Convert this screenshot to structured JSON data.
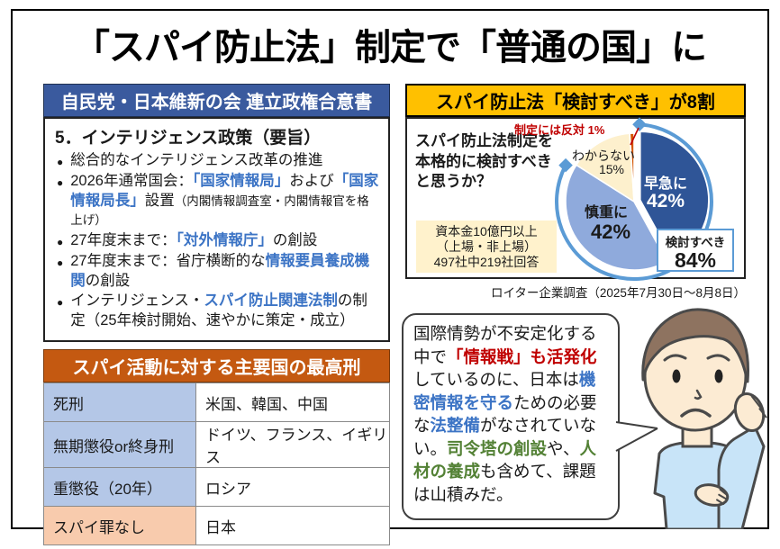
{
  "title": "「スパイ防止法」制定で「普通の国」に",
  "agreement": {
    "header": "自民党・日本維新の会 連立政権合意書",
    "heading": "5．インテリジェンス政策（要旨）",
    "bullets": [
      [
        {
          "t": "総合的なインテリジェンス改革の推進"
        }
      ],
      [
        {
          "t": "2026年通常国会："
        },
        {
          "t": "「国家情報局」",
          "c": "blue"
        },
        {
          "t": "および"
        },
        {
          "t": "「国家情報局長」",
          "c": "blue"
        },
        {
          "t": "設置"
        },
        {
          "t": "（内閣情報調査室・内閣情報官を格上げ）",
          "c": "small"
        }
      ],
      [
        {
          "t": "27年度末まで："
        },
        {
          "t": "「対外情報庁」",
          "c": "blue"
        },
        {
          "t": "の創設"
        }
      ],
      [
        {
          "t": "27年度末まで：省庁横断的な"
        },
        {
          "t": "情報要員養成機関",
          "c": "blue"
        },
        {
          "t": "の創設"
        }
      ],
      [
        {
          "t": "インテリジェンス・"
        },
        {
          "t": "スパイ防止関連法制",
          "c": "blue"
        },
        {
          "t": "の制定（25年検討開始、速やかに策定・成立）"
        }
      ]
    ]
  },
  "penalty_table": {
    "header": "スパイ活動に対する主要国の最高刑",
    "rows": [
      {
        "label": "死刑",
        "value": "米国、韓国、中国",
        "highlight": false
      },
      {
        "label": "無期懲役or終身刑",
        "value": "ドイツ、フランス、イギリス",
        "highlight": false
      },
      {
        "label": "重懲役（20年）",
        "value": "ロシア",
        "highlight": false
      },
      {
        "label": "スパイ罪なし",
        "value": "日本",
        "highlight": true
      }
    ]
  },
  "survey": {
    "header": "スパイ防止法「検討すべき」が8割",
    "question": "スパイ防止法制定を本格的に検討すべきと思うか？",
    "sample_note": "資本金10億円以上\n（上場・非上場）\n497社中219社回答",
    "minor_label": "制定には反対 1%",
    "source": "ロイター企業調査（2025年7月30日～8月8日）"
  },
  "chart_data": {
    "type": "pie",
    "title": "スパイ防止法制定を本格的に検討すべきと思うか？",
    "start_angle_deg": 0,
    "legend_position": "inside",
    "slices": [
      {
        "label": "早急に",
        "value": 42,
        "pct": "42%",
        "color": "#2F5597",
        "text_color": "#FFFFFF",
        "explode": 7
      },
      {
        "label": "慎重に",
        "value": 42,
        "pct": "42%",
        "color": "#8FAADC",
        "text_color": "#000000",
        "explode": 0
      },
      {
        "label": "わからない",
        "value": 15,
        "pct": "15%",
        "color": "#FDF0CD",
        "text_color": "#000000",
        "explode": 0
      },
      {
        "label": "制定には反対",
        "value": 1,
        "pct": "1%",
        "color": "#D35400",
        "text_color": "#C00000",
        "explode": 0
      }
    ],
    "callout": {
      "label": "検討すべき",
      "value": "84%"
    },
    "arc_color": "#5B9BD5"
  },
  "commentary": [
    {
      "t": "国際情勢が不安定化する中で"
    },
    {
      "t": "「情報戦」も活発化",
      "c": "red"
    },
    {
      "t": "しているのに、日本は"
    },
    {
      "t": "機密情報を守る",
      "c": "blue"
    },
    {
      "t": "ための必要な"
    },
    {
      "t": "法整備",
      "c": "blue"
    },
    {
      "t": "がなされていない。"
    },
    {
      "t": "司令塔の創設",
      "c": "green"
    },
    {
      "t": "や、"
    },
    {
      "t": "人材の養成",
      "c": "green"
    },
    {
      "t": "も含めて、課題は山積みだ。"
    }
  ],
  "colors": {
    "header_blue": "#3A5A9E",
    "header_gold": "#FFC000",
    "header_orange": "#C45911",
    "accent_blue_text": "#3C74C5",
    "red_text": "#C00000",
    "green_text": "#538135",
    "table_label_blue": "#B4C7E7",
    "table_label_peach": "#F8CBAD",
    "note_cream": "#FFF2CC",
    "pie_arc": "#5B9BD5"
  }
}
